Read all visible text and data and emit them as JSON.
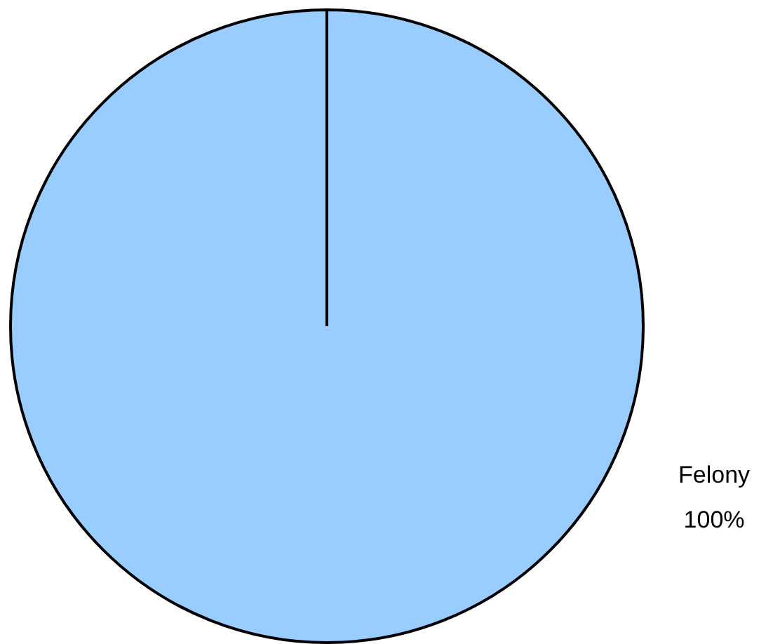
{
  "chart_data": {
    "type": "pie",
    "categories": [
      "Felony"
    ],
    "values": [
      100
    ],
    "colors": [
      "#99ccff"
    ],
    "value_labels": [
      "100%"
    ],
    "legend": false
  }
}
